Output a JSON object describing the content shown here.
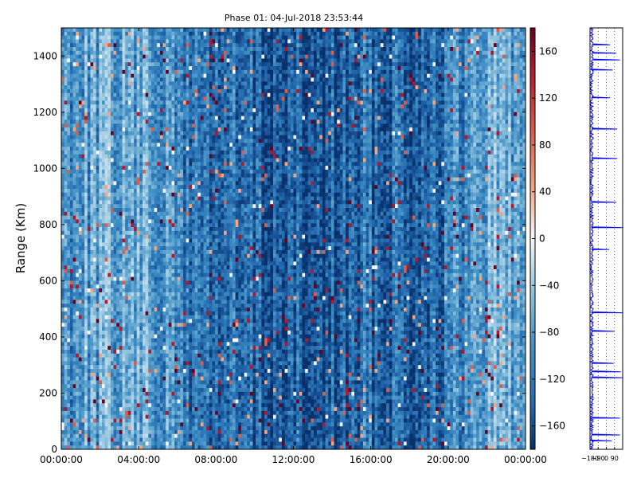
{
  "chart_data": [
    {
      "type": "heatmap",
      "title": "Phase 01: 04-Jul-2018 23:53:44",
      "xlabel": "",
      "ylabel": "Range (Km)",
      "x_ticks": [
        "00:00:00",
        "04:00:00",
        "08:00:00",
        "12:00:00",
        "16:00:00",
        "20:00:00",
        "00:00:00"
      ],
      "y_ticks": [
        0,
        200,
        400,
        600,
        800,
        1000,
        1200,
        1400
      ],
      "xlim_hours": [
        0,
        24
      ],
      "ylim": [
        0,
        1500
      ],
      "colormap": "RdBu_r",
      "color_min": "#053061",
      "color_mid": "#f7f7f7",
      "color_max": "#67001f",
      "colorbar": {
        "range": [
          -180,
          180
        ],
        "ticks": [
          -160,
          -120,
          -80,
          -40,
          0,
          40,
          80,
          120,
          160
        ]
      },
      "grid": false,
      "profile_hour_blues": [
        [
          0,
          0.62
        ],
        [
          0.5,
          0.55
        ],
        [
          1,
          0.5
        ],
        [
          1.5,
          0.52
        ],
        [
          2,
          0.5
        ],
        [
          2.5,
          0.48
        ],
        [
          3,
          0.52
        ],
        [
          3.5,
          0.5
        ],
        [
          4,
          0.52
        ],
        [
          4.5,
          0.5
        ],
        [
          5,
          0.55
        ],
        [
          5.5,
          0.62
        ],
        [
          6,
          0.65
        ],
        [
          6.5,
          0.7
        ],
        [
          7,
          0.72
        ],
        [
          7.5,
          0.74
        ],
        [
          8,
          0.76
        ],
        [
          8.5,
          0.78
        ],
        [
          9,
          0.8
        ],
        [
          9.5,
          0.8
        ],
        [
          10,
          0.82
        ],
        [
          10.5,
          0.84
        ],
        [
          11,
          0.84
        ],
        [
          11.5,
          0.86
        ],
        [
          12,
          0.86
        ],
        [
          12.5,
          0.86
        ],
        [
          13,
          0.9
        ],
        [
          13.5,
          0.9
        ],
        [
          14,
          0.84
        ],
        [
          14.5,
          0.82
        ],
        [
          15,
          0.84
        ],
        [
          15.5,
          0.8
        ],
        [
          16,
          0.78
        ],
        [
          16.5,
          0.8
        ],
        [
          17,
          0.76
        ],
        [
          17.5,
          0.74
        ],
        [
          18,
          0.8
        ],
        [
          18.5,
          0.78
        ],
        [
          19,
          0.74
        ],
        [
          19.5,
          0.72
        ],
        [
          20,
          0.74
        ],
        [
          20.5,
          0.68
        ],
        [
          21,
          0.66
        ],
        [
          21.5,
          0.55
        ],
        [
          22,
          0.45
        ],
        [
          22.5,
          0.42
        ],
        [
          23,
          0.5
        ],
        [
          23.5,
          0.55
        ],
        [
          24,
          0.58
        ]
      ]
    },
    {
      "type": "line",
      "title": "",
      "xlabel": "",
      "ylabel": "",
      "x_ticks": [
        "−180",
        "−90",
        "0",
        "90"
      ],
      "xlim": [
        -180,
        180
      ],
      "ylim": [
        0,
        1500
      ],
      "line_color": "#0000ff",
      "grid": "vertical-dotted",
      "spikes": [
        {
          "y": 1385,
          "to": 150
        },
        {
          "y": 1410,
          "to": 110
        },
        {
          "y": 1440,
          "to": 40
        },
        {
          "y": 1350,
          "to": 70
        },
        {
          "y": 1250,
          "to": 40
        },
        {
          "y": 1140,
          "to": 120
        },
        {
          "y": 1035,
          "to": 120
        },
        {
          "y": 880,
          "to": 110
        },
        {
          "y": 790,
          "to": 180
        },
        {
          "y": 710,
          "to": 30
        },
        {
          "y": 485,
          "to": 180
        },
        {
          "y": 420,
          "to": 90
        },
        {
          "y": 275,
          "to": 160
        },
        {
          "y": 305,
          "to": 80
        },
        {
          "y": 255,
          "to": 180
        },
        {
          "y": 110,
          "to": 150
        },
        {
          "y": 50,
          "to": 150
        },
        {
          "y": 30,
          "to": 60
        }
      ]
    }
  ]
}
